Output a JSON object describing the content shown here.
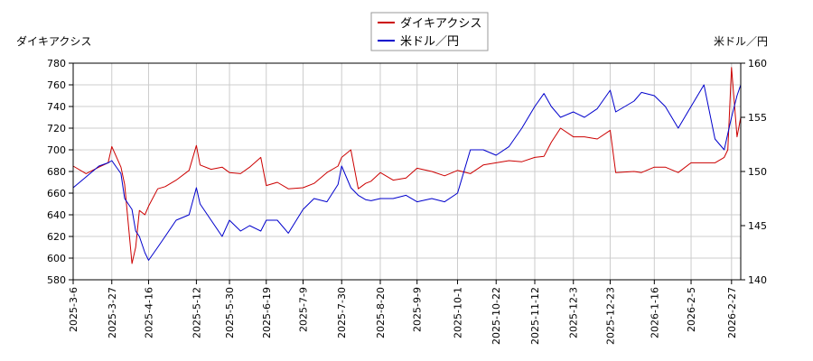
{
  "chart_data": {
    "type": "line",
    "left_axis_label": "ダイキアクシス",
    "right_axis_label": "米ドル／円",
    "legend_position": "top-center",
    "grid": true,
    "x_ticks": [
      "2025-3-6",
      "2025-3-27",
      "2025-4-16",
      "2025-5-12",
      "2025-5-30",
      "2025-6-19",
      "2025-7-9",
      "2025-7-30",
      "2025-8-20",
      "2025-9-9",
      "2025-10-1",
      "2025-10-22",
      "2025-11-12",
      "2025-12-3",
      "2025-12-23",
      "2026-1-16",
      "2026-2-5",
      "2026-2-27"
    ],
    "y_left_ticks": [
      580,
      600,
      620,
      640,
      660,
      680,
      700,
      720,
      740,
      760,
      780
    ],
    "y_right_ticks": [
      140,
      145,
      150,
      155,
      160
    ],
    "y_left_lim": [
      580,
      780
    ],
    "y_right_lim": [
      140,
      160
    ],
    "series": [
      {
        "name": "ダイキアクシス",
        "axis": "left",
        "color": "#cc0000",
        "x": [
          "2025-3-6",
          "2025-3-13",
          "2025-3-20",
          "2025-3-25",
          "2025-3-27",
          "2025-4-1",
          "2025-4-3",
          "2025-4-7",
          "2025-4-9",
          "2025-4-11",
          "2025-4-14",
          "2025-4-16",
          "2025-4-21",
          "2025-4-25",
          "2025-5-1",
          "2025-5-8",
          "2025-5-12",
          "2025-5-14",
          "2025-5-20",
          "2025-5-26",
          "2025-5-30",
          "2025-6-5",
          "2025-6-10",
          "2025-6-16",
          "2025-6-19",
          "2025-6-25",
          "2025-7-1",
          "2025-7-9",
          "2025-7-15",
          "2025-7-22",
          "2025-7-28",
          "2025-7-30",
          "2025-8-4",
          "2025-8-8",
          "2025-8-12",
          "2025-8-15",
          "2025-8-20",
          "2025-8-27",
          "2025-9-3",
          "2025-9-9",
          "2025-9-17",
          "2025-9-24",
          "2025-10-1",
          "2025-10-8",
          "2025-10-15",
          "2025-10-22",
          "2025-10-29",
          "2025-11-5",
          "2025-11-12",
          "2025-11-17",
          "2025-11-21",
          "2025-11-26",
          "2025-12-3",
          "2025-12-9",
          "2025-12-16",
          "2025-12-23",
          "2025-12-26",
          "2026-1-5",
          "2026-1-9",
          "2026-1-16",
          "2026-1-22",
          "2026-1-29",
          "2026-2-5",
          "2026-2-12",
          "2026-2-18",
          "2026-2-23",
          "2026-2-25",
          "2026-2-27",
          "2026-3-2",
          "2026-3-4"
        ],
        "values": [
          685,
          678,
          684,
          688,
          703,
          684,
          668,
          595,
          610,
          644,
          640,
          648,
          664,
          666,
          672,
          681,
          704,
          686,
          682,
          684,
          679,
          678,
          684,
          693,
          667,
          670,
          664,
          665,
          669,
          679,
          685,
          693,
          700,
          664,
          669,
          671,
          679,
          672,
          674,
          683,
          680,
          676,
          681,
          678,
          686,
          688,
          690,
          689,
          693,
          694,
          707,
          720,
          712,
          712,
          710,
          718,
          679,
          680,
          679,
          684,
          684,
          679,
          688,
          688,
          688,
          693,
          700,
          776,
          712,
          730
        ]
      },
      {
        "name": "米ドル／円",
        "axis": "right",
        "color": "#0000cc",
        "x": [
          "2025-3-6",
          "2025-3-13",
          "2025-3-20",
          "2025-3-25",
          "2025-3-27",
          "2025-4-1",
          "2025-4-3",
          "2025-4-7",
          "2025-4-9",
          "2025-4-11",
          "2025-4-14",
          "2025-4-16",
          "2025-4-21",
          "2025-4-25",
          "2025-5-1",
          "2025-5-8",
          "2025-5-12",
          "2025-5-14",
          "2025-5-20",
          "2025-5-26",
          "2025-5-30",
          "2025-6-5",
          "2025-6-10",
          "2025-6-16",
          "2025-6-19",
          "2025-6-25",
          "2025-7-1",
          "2025-7-9",
          "2025-7-15",
          "2025-7-22",
          "2025-7-28",
          "2025-7-30",
          "2025-8-4",
          "2025-8-8",
          "2025-8-12",
          "2025-8-15",
          "2025-8-20",
          "2025-8-27",
          "2025-9-3",
          "2025-9-9",
          "2025-9-17",
          "2025-9-24",
          "2025-10-1",
          "2025-10-8",
          "2025-10-15",
          "2025-10-22",
          "2025-10-29",
          "2025-11-5",
          "2025-11-12",
          "2025-11-17",
          "2025-11-21",
          "2025-11-26",
          "2025-12-3",
          "2025-12-9",
          "2025-12-16",
          "2025-12-23",
          "2025-12-26",
          "2026-1-5",
          "2026-1-9",
          "2026-1-16",
          "2026-1-22",
          "2026-1-29",
          "2026-2-5",
          "2026-2-12",
          "2026-2-18",
          "2026-2-23",
          "2026-2-25",
          "2026-2-27",
          "2026-3-2",
          "2026-3-4"
        ],
        "values": [
          148.5,
          149.5,
          150.5,
          150.8,
          151.0,
          149.8,
          147.5,
          146.5,
          144.5,
          144.0,
          142.5,
          141.8,
          143.0,
          144.0,
          145.5,
          146.0,
          148.5,
          147.0,
          145.5,
          144.0,
          145.5,
          144.5,
          145.0,
          144.5,
          145.5,
          145.5,
          144.3,
          146.5,
          147.5,
          147.2,
          148.8,
          150.5,
          148.5,
          147.8,
          147.4,
          147.3,
          147.5,
          147.5,
          147.8,
          147.2,
          147.5,
          147.2,
          148.0,
          152.0,
          152.0,
          151.5,
          152.3,
          154.0,
          156.0,
          157.2,
          156.0,
          155.0,
          155.5,
          155.0,
          155.8,
          157.5,
          155.5,
          156.5,
          157.3,
          157.0,
          156.0,
          154.0,
          156.0,
          158.0,
          153.0,
          152.0,
          153.5,
          155.0,
          157.0,
          158.0
        ]
      }
    ]
  }
}
